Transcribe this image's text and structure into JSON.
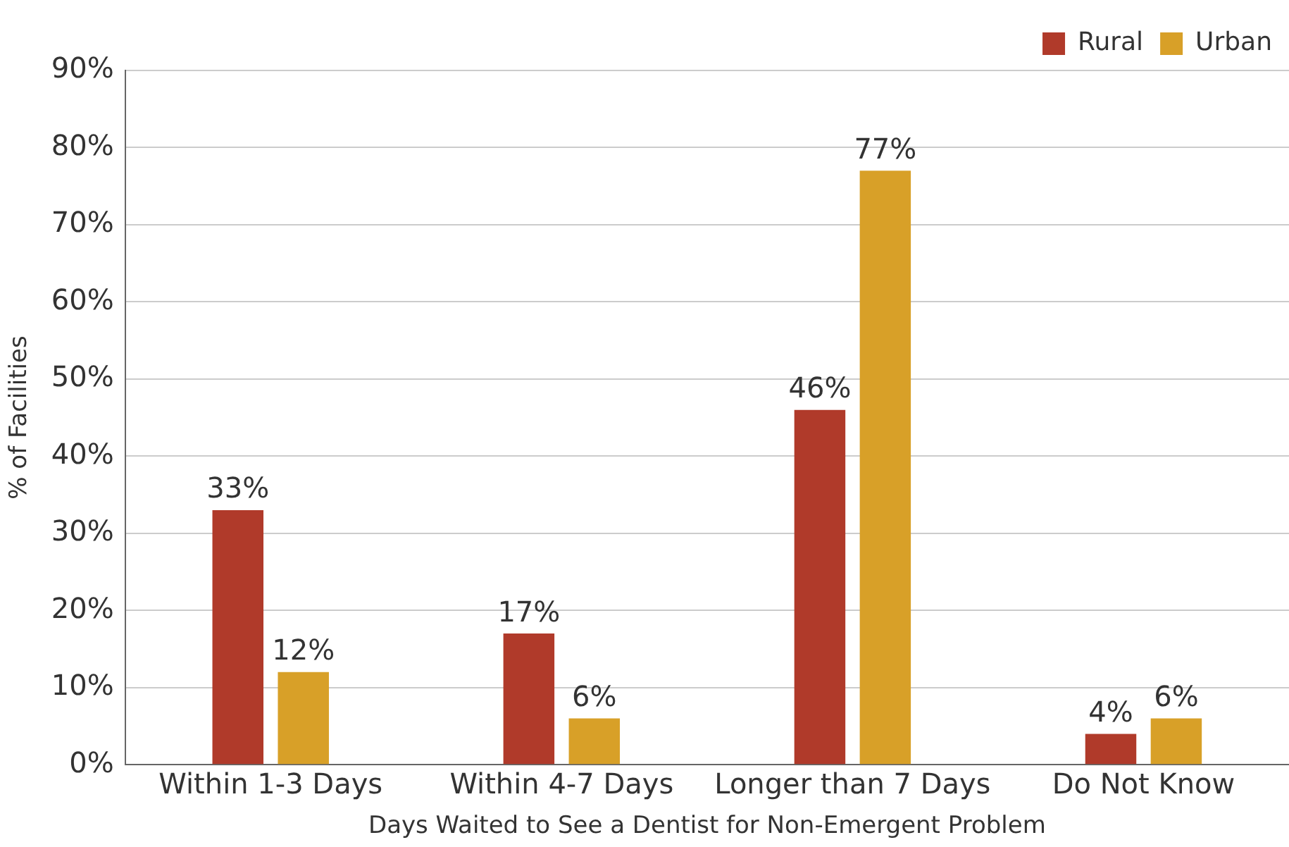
{
  "chart_data": {
    "type": "bar",
    "xlabel": "Days Waited to See a Dentist for Non-Emergent Problem",
    "ylabel": "% of Facilities",
    "categories": [
      "Within 1-3 Days",
      "Within 4-7 Days",
      "Longer than 7 Days",
      "Do Not Know"
    ],
    "series": [
      {
        "name": "Rural",
        "color": "#b03a2a",
        "values": [
          33,
          17,
          46,
          4
        ],
        "value_labels": [
          "33%",
          "17%",
          "46%",
          "4%"
        ]
      },
      {
        "name": "Urban",
        "color": "#d8a028",
        "values": [
          12,
          6,
          77,
          6
        ],
        "value_labels": [
          "12%",
          "6%",
          "77%",
          "6%"
        ]
      }
    ],
    "ylim": [
      0,
      90
    ],
    "yticks": [
      {
        "value": 0,
        "label": "0%"
      },
      {
        "value": 10,
        "label": "10%"
      },
      {
        "value": 20,
        "label": "20%"
      },
      {
        "value": 30,
        "label": "30%"
      },
      {
        "value": 40,
        "label": "40%"
      },
      {
        "value": 50,
        "label": "50%"
      },
      {
        "value": 60,
        "label": "60%"
      },
      {
        "value": 70,
        "label": "70%"
      },
      {
        "value": 80,
        "label": "80%"
      },
      {
        "value": 90,
        "label": "90%"
      }
    ],
    "grid": "y",
    "legend": "top right"
  }
}
